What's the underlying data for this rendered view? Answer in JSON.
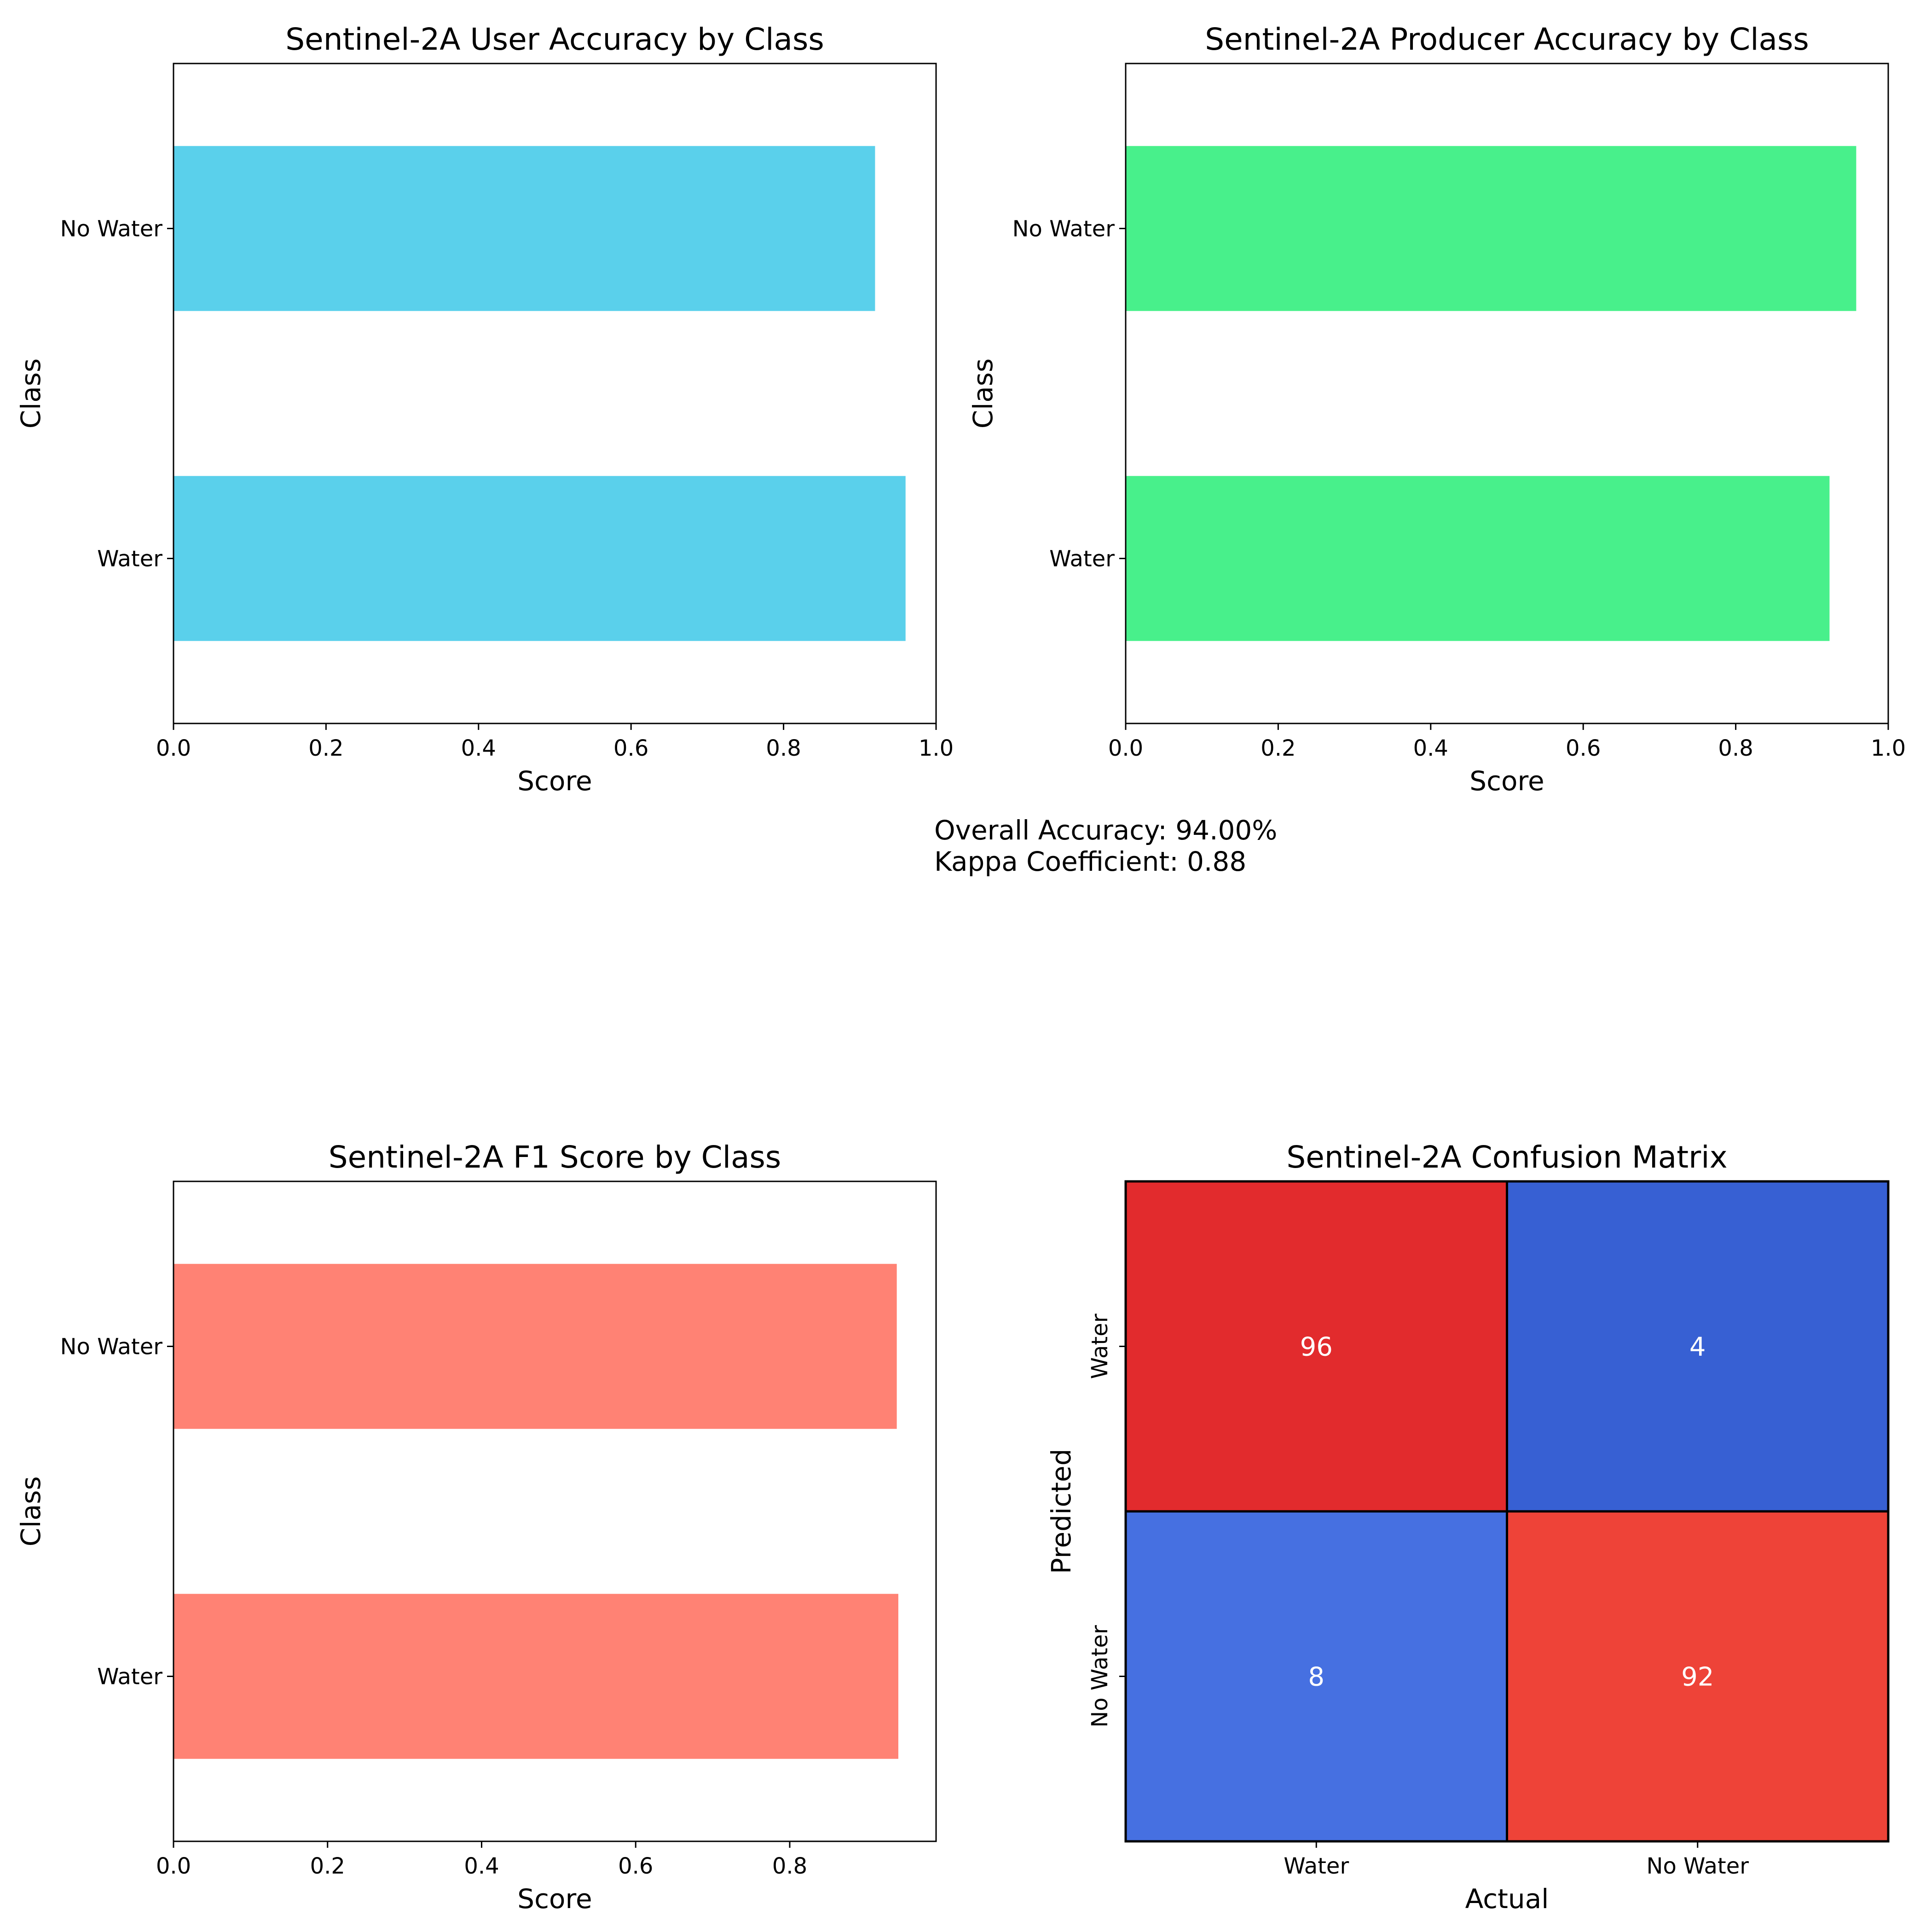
{
  "summary": {
    "overall_accuracy": "Overall Accuracy: 94.00%",
    "kappa": "Kappa Coefficient: 0.88"
  },
  "chart_data": [
    {
      "type": "bar",
      "orientation": "horizontal",
      "title": "Sentinel-2A User Accuracy by Class",
      "xlabel": "Score",
      "ylabel": "Class",
      "categories": [
        "Water",
        "No Water"
      ],
      "values": [
        0.96,
        0.92
      ],
      "xlim": [
        0,
        1.0
      ],
      "xticks": [
        "0.0",
        "0.2",
        "0.4",
        "0.6",
        "0.8",
        "1.0"
      ],
      "color": "#5ad0eb",
      "grid": false
    },
    {
      "type": "bar",
      "orientation": "horizontal",
      "title": "Sentinel-2A Producer Accuracy by Class",
      "xlabel": "Score",
      "ylabel": "Class",
      "categories": [
        "Water",
        "No Water"
      ],
      "values": [
        0.923,
        0.958
      ],
      "xlim": [
        0,
        1.0
      ],
      "xticks": [
        "0.0",
        "0.2",
        "0.4",
        "0.6",
        "0.8",
        "1.0"
      ],
      "color": "#48f08b",
      "grid": false
    },
    {
      "type": "bar",
      "orientation": "horizontal",
      "title": "Sentinel-2A F1 Score by Class",
      "xlabel": "Score",
      "ylabel": "Class",
      "categories": [
        "Water",
        "No Water"
      ],
      "values": [
        0.941,
        0.939
      ],
      "xlim": [
        0,
        0.99
      ],
      "xticks": [
        "0.0",
        "0.2",
        "0.4",
        "0.6",
        "0.8"
      ],
      "color": "#ff8274",
      "grid": false
    },
    {
      "type": "heatmap",
      "title": "Sentinel-2A Confusion Matrix",
      "xlabel": "Actual",
      "ylabel": "Predicted",
      "x_categories": [
        "Water",
        "No Water"
      ],
      "y_categories": [
        "Water",
        "No Water"
      ],
      "matrix": [
        [
          96,
          4
        ],
        [
          8,
          92
        ]
      ],
      "cell_colors": [
        [
          "#e22b2d",
          "#3760d3"
        ],
        [
          "#4670e1",
          "#ee4338"
        ]
      ],
      "text_color": "#ffffff"
    }
  ]
}
